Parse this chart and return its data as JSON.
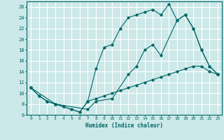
{
  "xlabel": "Humidex (Indice chaleur)",
  "bg_color": "#cce8e8",
  "grid_color": "#ffffff",
  "line_color": "#006666",
  "xlim": [
    -0.5,
    23.5
  ],
  "ylim": [
    6,
    27
  ],
  "yticks": [
    6,
    8,
    10,
    12,
    14,
    16,
    18,
    20,
    22,
    24,
    26
  ],
  "xticks": [
    0,
    1,
    2,
    3,
    4,
    5,
    6,
    7,
    8,
    9,
    10,
    11,
    12,
    13,
    14,
    15,
    16,
    17,
    18,
    19,
    20,
    21,
    22,
    23
  ],
  "line1_x": [
    0,
    1,
    2,
    3,
    4,
    5,
    6,
    7,
    8,
    9,
    10,
    11,
    12,
    13,
    14,
    15,
    16,
    17,
    18,
    19,
    20,
    21,
    22,
    23
  ],
  "line1_y": [
    11,
    9.5,
    8.5,
    8,
    7.5,
    7,
    6.5,
    8.5,
    14.5,
    18.5,
    19,
    22,
    24,
    24.5,
    25,
    25.5,
    24.5,
    26.5,
    23.5,
    24.5,
    22,
    18,
    15,
    13.5
  ],
  "line2_x": [
    0,
    1,
    2,
    3,
    4,
    5,
    6,
    7,
    8,
    9,
    10,
    11,
    12,
    13,
    14,
    15,
    16,
    17,
    18,
    19,
    20,
    21,
    22,
    23
  ],
  "line2_y": [
    11,
    9.5,
    8.5,
    8,
    7.5,
    7,
    6.5,
    8.5,
    9,
    9.5,
    10,
    10.5,
    11,
    11.5,
    12,
    12.5,
    13,
    13.5,
    14,
    14.5,
    15,
    15,
    14,
    13.5
  ],
  "line3_x": [
    0,
    3,
    7,
    8,
    10,
    12,
    13,
    14,
    15,
    16,
    18,
    19,
    20,
    21,
    22,
    23
  ],
  "line3_y": [
    11,
    8,
    7,
    8.5,
    9,
    13.5,
    15,
    18,
    19,
    17,
    23.5,
    24.5,
    22,
    18,
    15,
    13.5
  ]
}
